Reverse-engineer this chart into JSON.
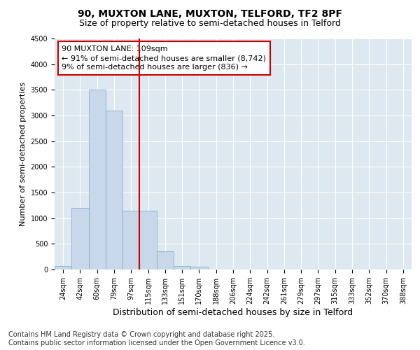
{
  "title1": "90, MUXTON LANE, MUXTON, TELFORD, TF2 8PF",
  "title2": "Size of property relative to semi-detached houses in Telford",
  "xlabel": "Distribution of semi-detached houses by size in Telford",
  "ylabel": "Number of semi-detached properties",
  "categories": [
    "24sqm",
    "42sqm",
    "60sqm",
    "79sqm",
    "97sqm",
    "115sqm",
    "133sqm",
    "151sqm",
    "170sqm",
    "188sqm",
    "206sqm",
    "224sqm",
    "242sqm",
    "261sqm",
    "279sqm",
    "297sqm",
    "315sqm",
    "333sqm",
    "352sqm",
    "370sqm",
    "388sqm"
  ],
  "values": [
    75,
    1200,
    3500,
    3100,
    1150,
    1150,
    350,
    75,
    50,
    0,
    0,
    0,
    0,
    0,
    0,
    0,
    0,
    0,
    0,
    0,
    0
  ],
  "bar_color": "#c8d8ea",
  "bar_edge_color": "#7ba7c7",
  "vline_x": 4.5,
  "vline_color": "#cc0000",
  "annotation_title": "90 MUXTON LANE: 109sqm",
  "annotation_line1": "← 91% of semi-detached houses are smaller (8,742)",
  "annotation_line2": "9% of semi-detached houses are larger (836) →",
  "annotation_box_color": "#cc0000",
  "ylim": [
    0,
    4500
  ],
  "yticks": [
    0,
    500,
    1000,
    1500,
    2000,
    2500,
    3000,
    3500,
    4000,
    4500
  ],
  "background_color": "#dde8f0",
  "footer1": "Contains HM Land Registry data © Crown copyright and database right 2025.",
  "footer2": "Contains public sector information licensed under the Open Government Licence v3.0.",
  "title_fontsize": 10,
  "subtitle_fontsize": 9,
  "xlabel_fontsize": 9,
  "ylabel_fontsize": 8,
  "tick_fontsize": 7,
  "annotation_fontsize": 8,
  "footer_fontsize": 7
}
